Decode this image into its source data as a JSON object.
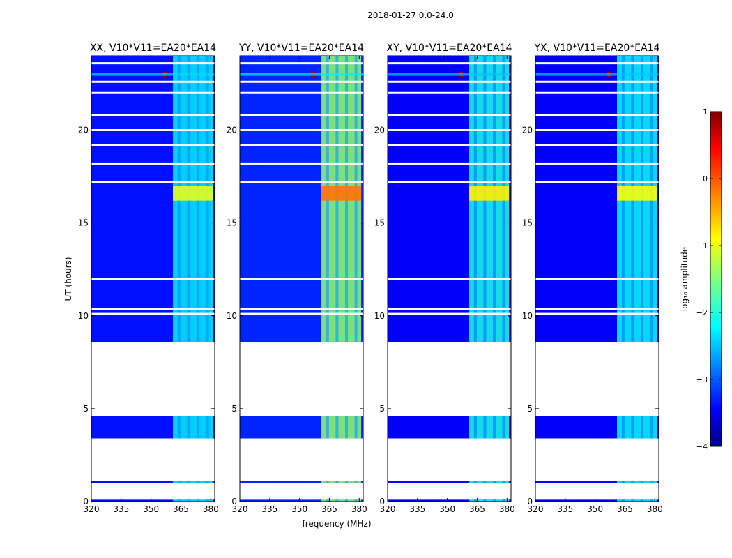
{
  "chart_data": {
    "type": "heatmap",
    "suptitle": "2018-01-27 0.0-24.0",
    "xlabel": "frequency (MHz)",
    "ylabel": "UT (hours)",
    "xlim": [
      320,
      382
    ],
    "ylim": [
      0,
      24
    ],
    "x_ticks": [
      320,
      335,
      350,
      365,
      380
    ],
    "x_tick_labels": [
      "320",
      "335",
      "350",
      "365",
      "380"
    ],
    "y_ticks": [
      0,
      5,
      10,
      15,
      20
    ],
    "y_tick_labels": [
      "0",
      "5",
      "10",
      "15",
      "20"
    ],
    "panels": [
      {
        "title": "XX, V10*V11=EA20*EA14",
        "pol": "XX",
        "band_level": -2.2,
        "bg_level": -3.3
      },
      {
        "title": "YY, V10*V11=EA20*EA14",
        "pol": "YY",
        "band_level": -1.4,
        "bg_level": -3.2
      },
      {
        "title": "XY, V10*V11=EA20*EA14",
        "pol": "XY",
        "band_level": -2.0,
        "bg_level": -3.4
      },
      {
        "title": "YX, V10*V11=EA20*EA14",
        "pol": "YX",
        "band_level": -2.1,
        "bg_level": -3.4
      }
    ],
    "data_coverage_hours": [
      [
        0.0,
        0.1
      ],
      [
        1.0,
        1.1
      ],
      [
        3.4,
        4.6
      ],
      [
        8.6,
        24.0
      ]
    ],
    "flagged_gaps_hours": [
      10.1,
      10.35,
      12.0,
      17.2,
      18.2,
      19.2,
      20.0,
      20.8,
      22.0,
      22.6,
      23.6
    ],
    "rfi_band_mhz": [
      361,
      381
    ],
    "rfi_strong_hours": [
      16.2,
      17.0
    ],
    "rfi_spike": {
      "freq_mhz": 357,
      "hour": 23.0,
      "level": 0.8
    },
    "colorbar": {
      "label": "log₁₀ amplitude",
      "range": [
        -4,
        1
      ],
      "ticks": [
        1,
        0,
        -1,
        -2,
        -3,
        -4
      ],
      "tick_labels": [
        "1",
        "0",
        "−1",
        "−2",
        "−3",
        "−4"
      ],
      "colormap": "jet"
    }
  }
}
